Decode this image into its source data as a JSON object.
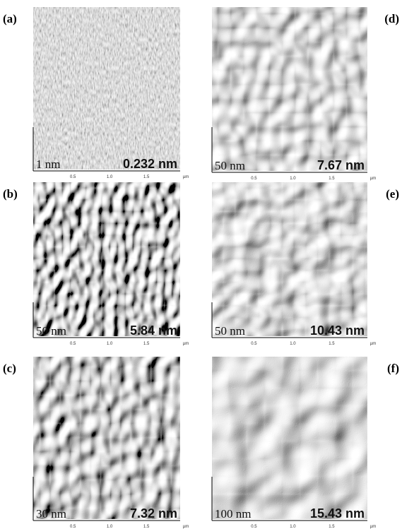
{
  "panels": [
    {
      "label": "(a)",
      "z_scale": "1 nm",
      "roughness": "0.232 nm"
    },
    {
      "label": "(b)",
      "z_scale": "50 nm",
      "roughness": "5.84 nm"
    },
    {
      "label": "(c)",
      "z_scale": "30 nm",
      "roughness": "7.32 nm"
    },
    {
      "label": "(d)",
      "z_scale": "50 nm",
      "roughness": "7.67 nm"
    },
    {
      "label": "(e)",
      "z_scale": "50 nm",
      "roughness": "10.43 nm"
    },
    {
      "label": "(f)",
      "z_scale": "100 nm",
      "roughness": "15.43 nm"
    }
  ],
  "axis_ticks": [
    "0.5",
    "1.0",
    "1.5"
  ],
  "axis_unit": "µm"
}
